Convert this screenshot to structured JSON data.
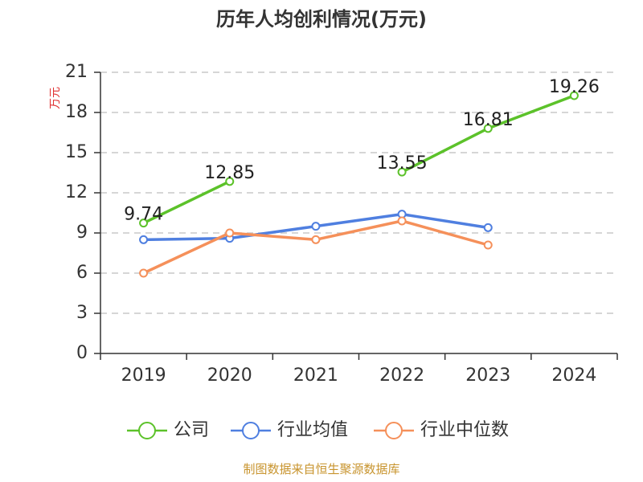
{
  "chart_data": {
    "type": "line",
    "title": "历年人均创利情况(万元)",
    "ylabel": "万元",
    "xlabel": "",
    "categories": [
      "2019",
      "2020",
      "2021",
      "2022",
      "2023",
      "2024"
    ],
    "ylim": [
      0,
      21
    ],
    "yticks": [
      0,
      3,
      6,
      9,
      12,
      15,
      18,
      21
    ],
    "grid": true,
    "legend_position": "bottom",
    "series": [
      {
        "name": "公司",
        "color": "#5cc22a",
        "values": [
          9.74,
          12.85,
          null,
          13.55,
          16.81,
          19.26
        ],
        "labels": [
          "9.74",
          "12.85",
          "",
          "13.55",
          "16.81",
          "19.26"
        ]
      },
      {
        "name": "行业均值",
        "color": "#4f7fe0",
        "values": [
          8.5,
          8.6,
          9.5,
          10.4,
          9.4,
          null
        ],
        "labels": []
      },
      {
        "name": "行业中位数",
        "color": "#f5905a",
        "values": [
          6.0,
          9.0,
          8.5,
          9.9,
          8.1,
          null
        ],
        "labels": []
      }
    ]
  },
  "colors": {
    "ylabel": "#e03131",
    "source": "#c8942e",
    "axis": "#333333",
    "grid": "#c8c8c8"
  },
  "source_text": "制图数据来自恒生聚源数据库"
}
